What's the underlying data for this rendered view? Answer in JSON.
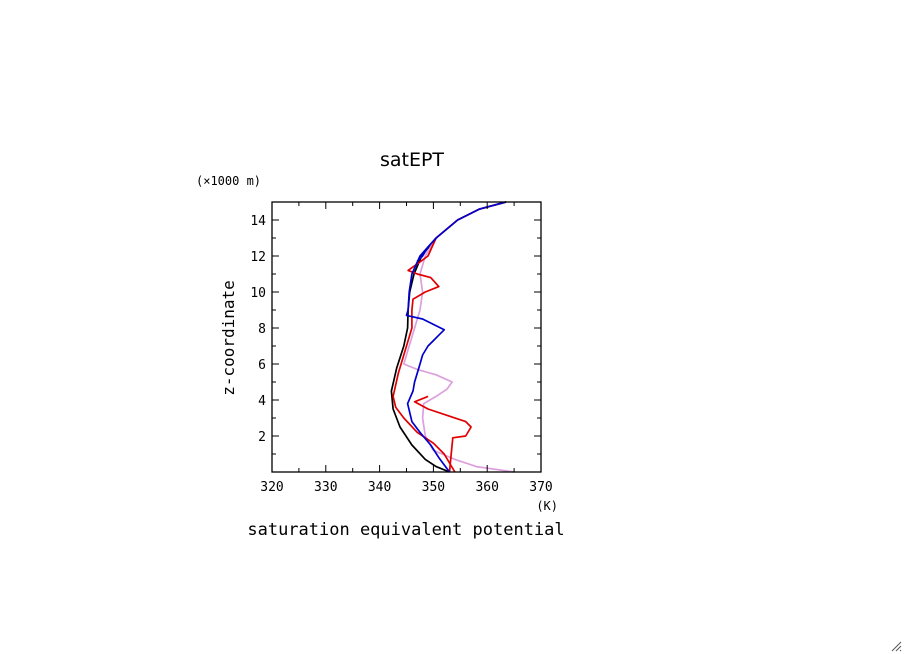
{
  "chart_data": {
    "type": "line",
    "title": "satEPT",
    "xlabel": "saturation equivalent potential",
    "xunit": "(K)",
    "ylabel": "z-coordinate",
    "yunit": "(×1000 m)",
    "xlim": [
      320,
      370
    ],
    "ylim": [
      0,
      15
    ],
    "xticks": [
      320,
      330,
      340,
      350,
      360,
      370
    ],
    "yticks": [
      2,
      4,
      6,
      8,
      10,
      12,
      14
    ],
    "grid": false,
    "series": [
      {
        "color": "#000000",
        "points": [
          [
            353,
            0.0
          ],
          [
            350.5,
            0.3
          ],
          [
            348.5,
            0.7
          ],
          [
            346,
            1.5
          ],
          [
            343.8,
            2.5
          ],
          [
            342.5,
            3.5
          ],
          [
            342.2,
            4.5
          ],
          [
            343.2,
            5.8
          ],
          [
            344.5,
            7.0
          ],
          [
            345.2,
            8.0
          ],
          [
            345.3,
            9.0
          ],
          [
            345.6,
            10.0
          ],
          [
            346.4,
            11.0
          ],
          [
            347.8,
            12.0
          ],
          [
            350.5,
            13.0
          ],
          [
            354.5,
            14.0
          ],
          [
            358.5,
            14.6
          ],
          [
            363.5,
            15.0
          ]
        ]
      },
      {
        "color": "#dda0dd",
        "points": [
          [
            365,
            0.0
          ],
          [
            358,
            0.3
          ],
          [
            354,
            0.7
          ],
          [
            350,
            1.2
          ],
          [
            348.5,
            2.0
          ],
          [
            348,
            3.0
          ],
          [
            348.2,
            3.8
          ],
          [
            350.5,
            4.2
          ],
          [
            352.5,
            4.6
          ],
          [
            353.5,
            5.0
          ],
          [
            350.5,
            5.4
          ],
          [
            347,
            5.7
          ],
          [
            344.5,
            6.0
          ],
          [
            345.5,
            7.0
          ],
          [
            346.5,
            8.0
          ],
          [
            347.5,
            9.0
          ],
          [
            348,
            10.0
          ],
          [
            347.5,
            11.0
          ],
          [
            348.5,
            12.0
          ],
          [
            350.5,
            13.0
          ],
          [
            354.5,
            14.0
          ],
          [
            358.5,
            14.6
          ],
          [
            363.5,
            15.0
          ]
        ]
      },
      {
        "color": "#e00000",
        "points": [
          [
            354,
            0.0
          ],
          [
            353,
            0.5
          ],
          [
            352,
            1.0
          ],
          [
            350,
            1.6
          ],
          [
            347,
            2.2
          ],
          [
            344.5,
            3.0
          ],
          [
            343,
            3.6
          ],
          [
            342.5,
            4.2
          ],
          [
            343.5,
            5.5
          ],
          [
            345,
            7.0
          ],
          [
            346,
            8.0
          ],
          [
            346,
            9.0
          ],
          [
            346.2,
            9.6
          ],
          [
            348.5,
            10.0
          ],
          [
            351,
            10.3
          ],
          [
            349.5,
            10.8
          ],
          [
            347,
            11.0
          ],
          [
            345.3,
            11.2
          ],
          [
            347.2,
            11.6
          ],
          [
            349,
            12.0
          ],
          [
            350.5,
            13.0
          ],
          [
            354.5,
            14.0
          ],
          [
            358.5,
            14.6
          ],
          [
            363.5,
            15.0
          ]
        ]
      },
      {
        "color": "#e00000",
        "points": [
          [
            353,
            0.0
          ],
          [
            353.3,
            1.0
          ],
          [
            353.6,
            1.9
          ],
          [
            356,
            2.0
          ],
          [
            357,
            2.5
          ],
          [
            356,
            2.8
          ],
          [
            353,
            3.1
          ],
          [
            349,
            3.5
          ],
          [
            346.5,
            3.9
          ],
          [
            349,
            4.2
          ]
        ]
      },
      {
        "color": "#0000cc",
        "points": [
          [
            353,
            0.0
          ],
          [
            351,
            0.8
          ],
          [
            349.5,
            1.5
          ],
          [
            347.5,
            2.2
          ],
          [
            346,
            2.8
          ],
          [
            345.2,
            3.8
          ],
          [
            346.2,
            4.5
          ],
          [
            346.5,
            5.0
          ],
          [
            347,
            5.5
          ],
          [
            347.5,
            6.0
          ],
          [
            348,
            6.5
          ],
          [
            349,
            7.0
          ],
          [
            350,
            7.3
          ],
          [
            351,
            7.6
          ],
          [
            352,
            7.9
          ],
          [
            350,
            8.2
          ],
          [
            348,
            8.5
          ],
          [
            345,
            8.7
          ],
          [
            345.3,
            9.0
          ],
          [
            345.5,
            10.0
          ],
          [
            346,
            11.0
          ],
          [
            347.5,
            12.0
          ],
          [
            349,
            12.5
          ],
          [
            350.5,
            13.0
          ],
          [
            354.5,
            14.0
          ],
          [
            358.5,
            14.6
          ],
          [
            363.5,
            15.0
          ]
        ]
      },
      {
        "color": "#0000cc",
        "points": [
          [
            349,
            12.5
          ],
          [
            348,
            12.0
          ],
          [
            347,
            11.7
          ]
        ]
      }
    ]
  },
  "window": {
    "resize_grip_icon": "resize-grip-icon"
  }
}
